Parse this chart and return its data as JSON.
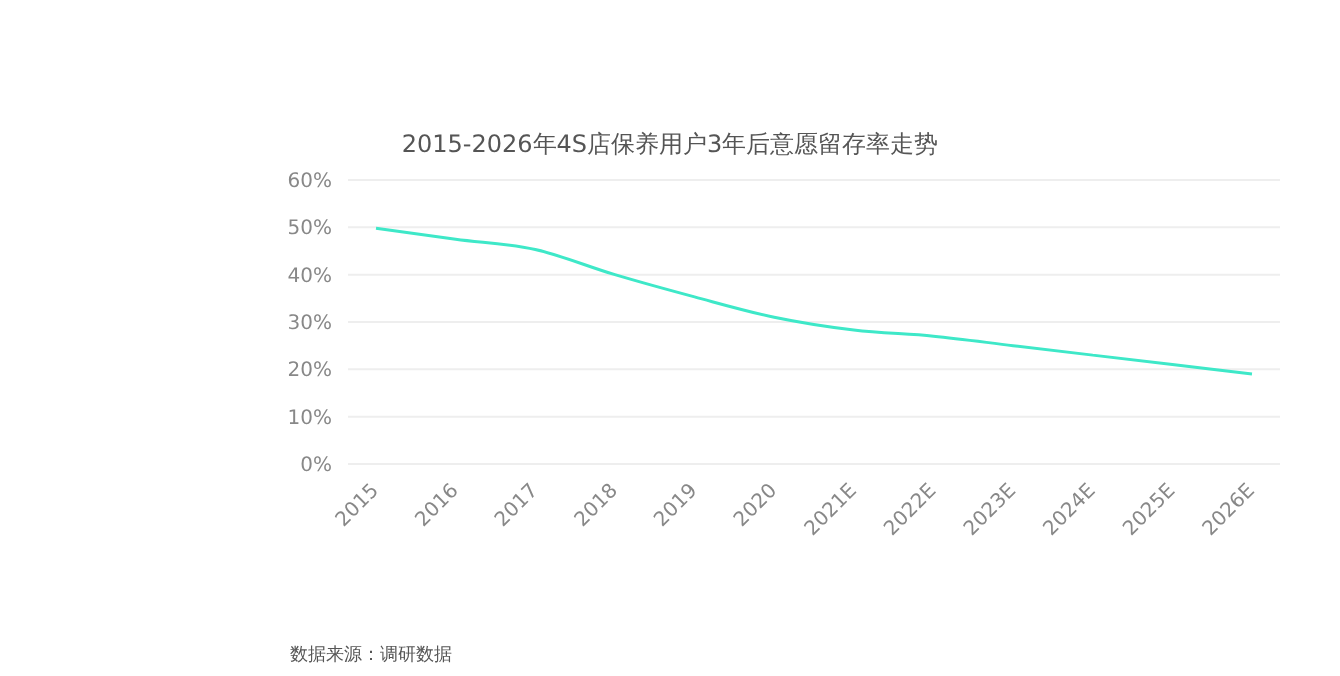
{
  "chart_data": {
    "type": "line",
    "title": "2015-2026年4S店保养用户3年后意愿留存率走势",
    "categories": [
      "2015",
      "2016",
      "2017",
      "2018",
      "2019",
      "2020",
      "2021E",
      "2022E",
      "2023E",
      "2024E",
      "2025E",
      "2026E"
    ],
    "series": [
      {
        "color": "#3ee8c8",
        "values": [
          49.8,
          47.5,
          45.3,
          40,
          35.3,
          31,
          28.3,
          27,
          25,
          23,
          21,
          19
        ]
      }
    ],
    "ylim": [
      0,
      60
    ],
    "yticks": [
      {
        "value": 0,
        "label": "0%"
      },
      {
        "value": 10,
        "label": "10%"
      },
      {
        "value": 20,
        "label": "20%"
      },
      {
        "value": 30,
        "label": "30%"
      },
      {
        "value": 40,
        "label": "40%"
      },
      {
        "value": 50,
        "label": "50%"
      },
      {
        "value": 60,
        "label": "60%"
      }
    ],
    "grid": "y",
    "marker": "none",
    "line_style": "solid",
    "legend": false,
    "annotations": [
      "数据来源：调研数据"
    ]
  }
}
